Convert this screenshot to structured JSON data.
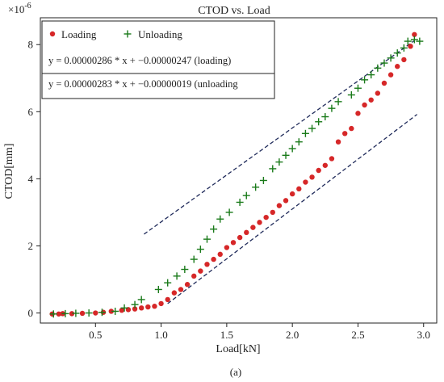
{
  "chart_data": {
    "type": "scatter",
    "title": "CTOD vs. Load",
    "xlabel": "Load[kN]",
    "ylabel": "CTOD[mm]",
    "y_multiplier_label": "×10",
    "y_multiplier_exponent": "-6",
    "xlim": [
      0.08,
      3.1
    ],
    "ylim": [
      -0.3,
      8.8
    ],
    "x_ticks": [
      0.5,
      1.0,
      1.5,
      2.0,
      2.5,
      3.0
    ],
    "x_tick_labels": [
      "0.5",
      "1.0",
      "1.5",
      "2.0",
      "2.5",
      "3.0"
    ],
    "y_ticks": [
      0,
      2,
      4,
      6,
      8
    ],
    "y_tick_labels": [
      "0",
      "2",
      "4",
      "6",
      "8"
    ],
    "grid": false,
    "legend_position": "top-left",
    "caption": "(a)",
    "equations": [
      "y = 0.00000286 * x  + −0.00000247 (loading)",
      "y = 0.00000283 * x  + −0.00000019 (unloading"
    ],
    "series": [
      {
        "name": "Loading",
        "marker": "circle",
        "color": "#d62728",
        "points": [
          [
            0.17,
            -0.03
          ],
          [
            0.22,
            -0.03
          ],
          [
            0.25,
            -0.02
          ],
          [
            0.32,
            -0.02
          ],
          [
            0.4,
            -0.01
          ],
          [
            0.5,
            0.0
          ],
          [
            0.56,
            0.02
          ],
          [
            0.62,
            0.05
          ],
          [
            0.7,
            0.08
          ],
          [
            0.75,
            0.1
          ],
          [
            0.8,
            0.12
          ],
          [
            0.85,
            0.15
          ],
          [
            0.9,
            0.18
          ],
          [
            0.95,
            0.2
          ],
          [
            1.0,
            0.28
          ],
          [
            1.05,
            0.4
          ],
          [
            1.1,
            0.6
          ],
          [
            1.15,
            0.7
          ],
          [
            1.2,
            0.85
          ],
          [
            1.25,
            1.1
          ],
          [
            1.3,
            1.25
          ],
          [
            1.35,
            1.45
          ],
          [
            1.4,
            1.6
          ],
          [
            1.45,
            1.75
          ],
          [
            1.5,
            1.95
          ],
          [
            1.55,
            2.1
          ],
          [
            1.6,
            2.25
          ],
          [
            1.65,
            2.4
          ],
          [
            1.7,
            2.55
          ],
          [
            1.75,
            2.7
          ],
          [
            1.8,
            2.85
          ],
          [
            1.85,
            3.0
          ],
          [
            1.9,
            3.2
          ],
          [
            1.95,
            3.35
          ],
          [
            2.0,
            3.55
          ],
          [
            2.05,
            3.7
          ],
          [
            2.1,
            3.9
          ],
          [
            2.15,
            4.05
          ],
          [
            2.2,
            4.25
          ],
          [
            2.25,
            4.4
          ],
          [
            2.3,
            4.6
          ],
          [
            2.35,
            5.1
          ],
          [
            2.4,
            5.35
          ],
          [
            2.45,
            5.5
          ],
          [
            2.5,
            5.95
          ],
          [
            2.55,
            6.2
          ],
          [
            2.6,
            6.35
          ],
          [
            2.65,
            6.55
          ],
          [
            2.7,
            6.85
          ],
          [
            2.75,
            7.1
          ],
          [
            2.8,
            7.35
          ],
          [
            2.85,
            7.55
          ],
          [
            2.9,
            7.95
          ],
          [
            2.93,
            8.3
          ]
        ]
      },
      {
        "name": "Unloading",
        "marker": "plus",
        "color": "#1a7a1a",
        "points": [
          [
            0.18,
            -0.03
          ],
          [
            0.27,
            -0.02
          ],
          [
            0.35,
            -0.01
          ],
          [
            0.45,
            0.0
          ],
          [
            0.55,
            0.02
          ],
          [
            0.65,
            0.05
          ],
          [
            0.72,
            0.15
          ],
          [
            0.8,
            0.25
          ],
          [
            0.85,
            0.4
          ],
          [
            0.98,
            0.7
          ],
          [
            1.05,
            0.9
          ],
          [
            1.12,
            1.1
          ],
          [
            1.18,
            1.3
          ],
          [
            1.25,
            1.6
          ],
          [
            1.3,
            1.9
          ],
          [
            1.35,
            2.2
          ],
          [
            1.4,
            2.5
          ],
          [
            1.45,
            2.8
          ],
          [
            1.52,
            3.0
          ],
          [
            1.6,
            3.3
          ],
          [
            1.65,
            3.5
          ],
          [
            1.72,
            3.75
          ],
          [
            1.78,
            3.95
          ],
          [
            1.85,
            4.3
          ],
          [
            1.9,
            4.5
          ],
          [
            1.95,
            4.7
          ],
          [
            2.0,
            4.9
          ],
          [
            2.05,
            5.1
          ],
          [
            2.1,
            5.35
          ],
          [
            2.15,
            5.5
          ],
          [
            2.2,
            5.7
          ],
          [
            2.25,
            5.85
          ],
          [
            2.3,
            6.1
          ],
          [
            2.35,
            6.3
          ],
          [
            2.45,
            6.5
          ],
          [
            2.5,
            6.7
          ],
          [
            2.55,
            6.95
          ],
          [
            2.6,
            7.1
          ],
          [
            2.65,
            7.3
          ],
          [
            2.7,
            7.45
          ],
          [
            2.75,
            7.6
          ],
          [
            2.8,
            7.75
          ],
          [
            2.85,
            7.9
          ],
          [
            2.88,
            8.1
          ],
          [
            2.93,
            8.15
          ],
          [
            2.97,
            8.1
          ]
        ]
      }
    ],
    "fit_lines": [
      {
        "label": "loading fit",
        "x": [
          1.05,
          2.95
        ],
        "y": [
          0.28,
          5.92
        ],
        "color": "#1f2a5a",
        "style": "dashed"
      },
      {
        "label": "unloading fit",
        "x": [
          0.87,
          2.93
        ],
        "y": [
          2.35,
          8.12
        ],
        "color": "#1f2a5a",
        "style": "dashed"
      }
    ]
  }
}
